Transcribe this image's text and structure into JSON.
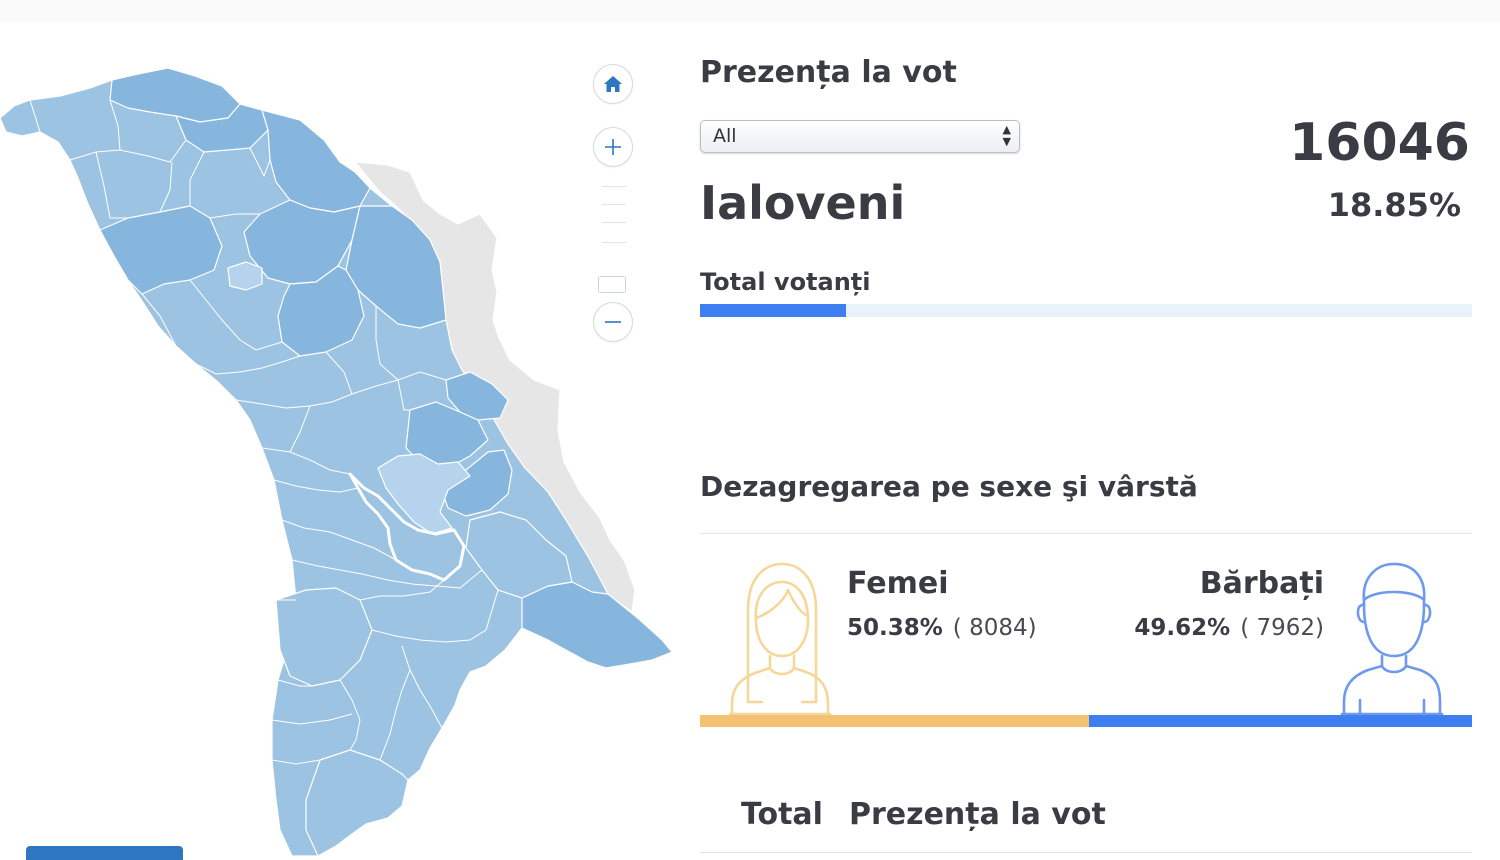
{
  "turnout": {
    "title": "Prezența la vot",
    "filter": {
      "selected": "All"
    },
    "total_voters": "16046",
    "district": "Ialoveni",
    "percent": "18.85%",
    "percent_value": 18.85,
    "bar_label": "Total votanți"
  },
  "breakdown": {
    "title": "Dezagregarea pe sexe şi vârstă",
    "female": {
      "label": "Femei",
      "percent": "50.38%",
      "count": "( 8084)",
      "share": 50.38,
      "color": "#f5c274"
    },
    "male": {
      "label": "Bărbați",
      "percent": "49.62%",
      "count": "( 7962)",
      "share": 49.62,
      "color": "#3d7ef0"
    }
  },
  "table": {
    "headers": [
      "Total",
      "Prezența la vot"
    ]
  },
  "map": {
    "controls": [
      "home-icon",
      "plus-icon",
      "minus-icon"
    ],
    "selected_region": "Ialoveni",
    "colors": {
      "base": "#9dc3e3",
      "dark": "#86b6de",
      "light": "#b5d3ec",
      "transnistria": "#e6e6e6",
      "accent": "#2f76c0"
    }
  }
}
